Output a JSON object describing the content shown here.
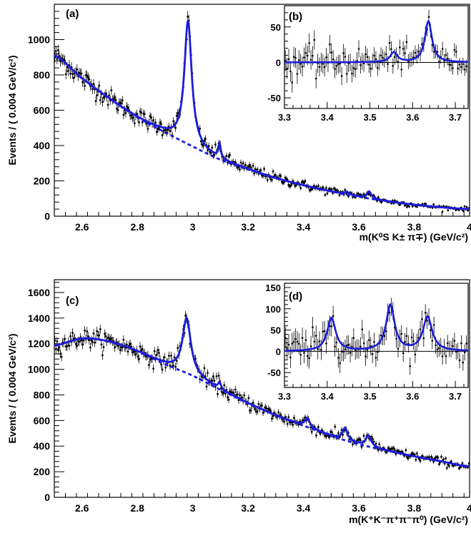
{
  "chart_data": [
    {
      "id": "a",
      "type": "scatter",
      "panel_label": "(a)",
      "ylabel": "Events / ( 0.004 GeV/c²)",
      "xlabel": "m(K⁰S K± π∓) (GeV/c²)",
      "xlim": [
        2.5,
        4.0
      ],
      "ylim": [
        0,
        1200
      ],
      "xticks": [
        2.6,
        2.8,
        3.0,
        3.2,
        3.4,
        3.6,
        3.8,
        4.0
      ],
      "xtick_labels": [
        "2.6",
        "2.8",
        "3",
        "3.2",
        "3.4",
        "3.6",
        "3.8",
        "4"
      ],
      "yticks": [
        0,
        200,
        400,
        600,
        800,
        1000
      ],
      "ytick_labels": [
        "0",
        "200",
        "400",
        "600",
        "800",
        "1000"
      ],
      "background": {
        "x": [
          2.5,
          2.6,
          2.7,
          2.8,
          2.9,
          3.0,
          3.1,
          3.2,
          3.3,
          3.4,
          3.5,
          3.6,
          3.7,
          3.8,
          3.9,
          4.0
        ],
        "y": [
          910,
          780,
          665,
          560,
          475,
          395,
          320,
          265,
          215,
          175,
          140,
          110,
          85,
          65,
          50,
          40
        ]
      },
      "peaks": [
        {
          "mass": 2.983,
          "width": 0.032,
          "amplitude": 700
        },
        {
          "mass": 3.097,
          "width": 0.01,
          "amplitude": 80
        },
        {
          "mass": 3.637,
          "width": 0.02,
          "amplitude": 40
        },
        {
          "mass": 3.556,
          "width": 0.02,
          "amplitude": 14
        }
      ],
      "series": [
        {
          "style": "data-points",
          "color": "#000000"
        },
        {
          "style": "total-fit",
          "color": "#1c1cdc"
        },
        {
          "style": "background-fit",
          "color": "#1c1cdc"
        }
      ],
      "inset": {
        "panel_label": "(b)",
        "xlim": [
          3.3,
          3.73
        ],
        "ylim": [
          -65,
          80
        ],
        "xticks": [
          3.3,
          3.4,
          3.5,
          3.6,
          3.7
        ],
        "xtick_labels": [
          "3.3",
          "3.4",
          "3.5",
          "3.6",
          "3.7"
        ],
        "yticks": [
          -50,
          0,
          50
        ],
        "ytick_labels": [
          "-50",
          "0",
          "50"
        ],
        "peaks": [
          {
            "mass": 3.556,
            "width": 0.02,
            "amplitude": 14
          },
          {
            "mass": 3.637,
            "width": 0.02,
            "amplitude": 58
          }
        ]
      }
    },
    {
      "id": "c",
      "type": "scatter",
      "panel_label": "(c)",
      "ylabel": "Events / ( 0.004 GeV/c²)",
      "xlabel": "m(K⁺K⁻π⁺π⁻π⁰) (GeV/c²)",
      "xlim": [
        2.5,
        4.0
      ],
      "ylim": [
        0,
        1700
      ],
      "xticks": [
        2.6,
        2.8,
        3.0,
        3.2,
        3.4,
        3.6,
        3.8,
        4.0
      ],
      "xtick_labels": [
        "2.6",
        "2.8",
        "3",
        "3.2",
        "3.4",
        "3.6",
        "3.8",
        "4"
      ],
      "yticks": [
        0,
        200,
        400,
        600,
        800,
        1000,
        1200,
        1400,
        1600
      ],
      "ytick_labels": [
        "0",
        "200",
        "400",
        "600",
        "800",
        "1000",
        "1200",
        "1400",
        "1600"
      ],
      "background": {
        "x": [
          2.5,
          2.6,
          2.7,
          2.8,
          2.9,
          3.0,
          3.1,
          3.2,
          3.3,
          3.4,
          3.5,
          3.6,
          3.7,
          3.8,
          3.9,
          4.0
        ],
        "y": [
          1185,
          1240,
          1215,
          1140,
          1040,
          950,
          840,
          735,
          640,
          560,
          480,
          415,
          365,
          320,
          280,
          240
        ]
      },
      "peaks": [
        {
          "mass": 2.978,
          "width": 0.036,
          "amplitude": 430
        },
        {
          "mass": 3.097,
          "width": 0.012,
          "amplitude": 50
        },
        {
          "mass": 3.414,
          "width": 0.022,
          "amplitude": 70
        },
        {
          "mass": 3.55,
          "width": 0.022,
          "amplitude": 95
        },
        {
          "mass": 3.635,
          "width": 0.024,
          "amplitude": 85
        }
      ],
      "series": [
        {
          "style": "data-points",
          "color": "#000000"
        },
        {
          "style": "total-fit",
          "color": "#1c1cdc"
        },
        {
          "style": "background-fit",
          "color": "#1c1cdc"
        }
      ],
      "inset": {
        "panel_label": "(d)",
        "xlim": [
          3.3,
          3.73
        ],
        "ylim": [
          -85,
          160
        ],
        "xticks": [
          3.3,
          3.4,
          3.5,
          3.6,
          3.7
        ],
        "xtick_labels": [
          "3.3",
          "3.4",
          "3.5",
          "3.6",
          "3.7"
        ],
        "yticks": [
          -50,
          0,
          50,
          100,
          150
        ],
        "ytick_labels": [
          "-50",
          "0",
          "50",
          "100",
          "150"
        ],
        "peaks": [
          {
            "mass": 3.41,
            "width": 0.024,
            "amplitude": 78
          },
          {
            "mass": 3.548,
            "width": 0.024,
            "amplitude": 108
          },
          {
            "mass": 3.635,
            "width": 0.026,
            "amplitude": 80
          }
        ]
      }
    }
  ]
}
